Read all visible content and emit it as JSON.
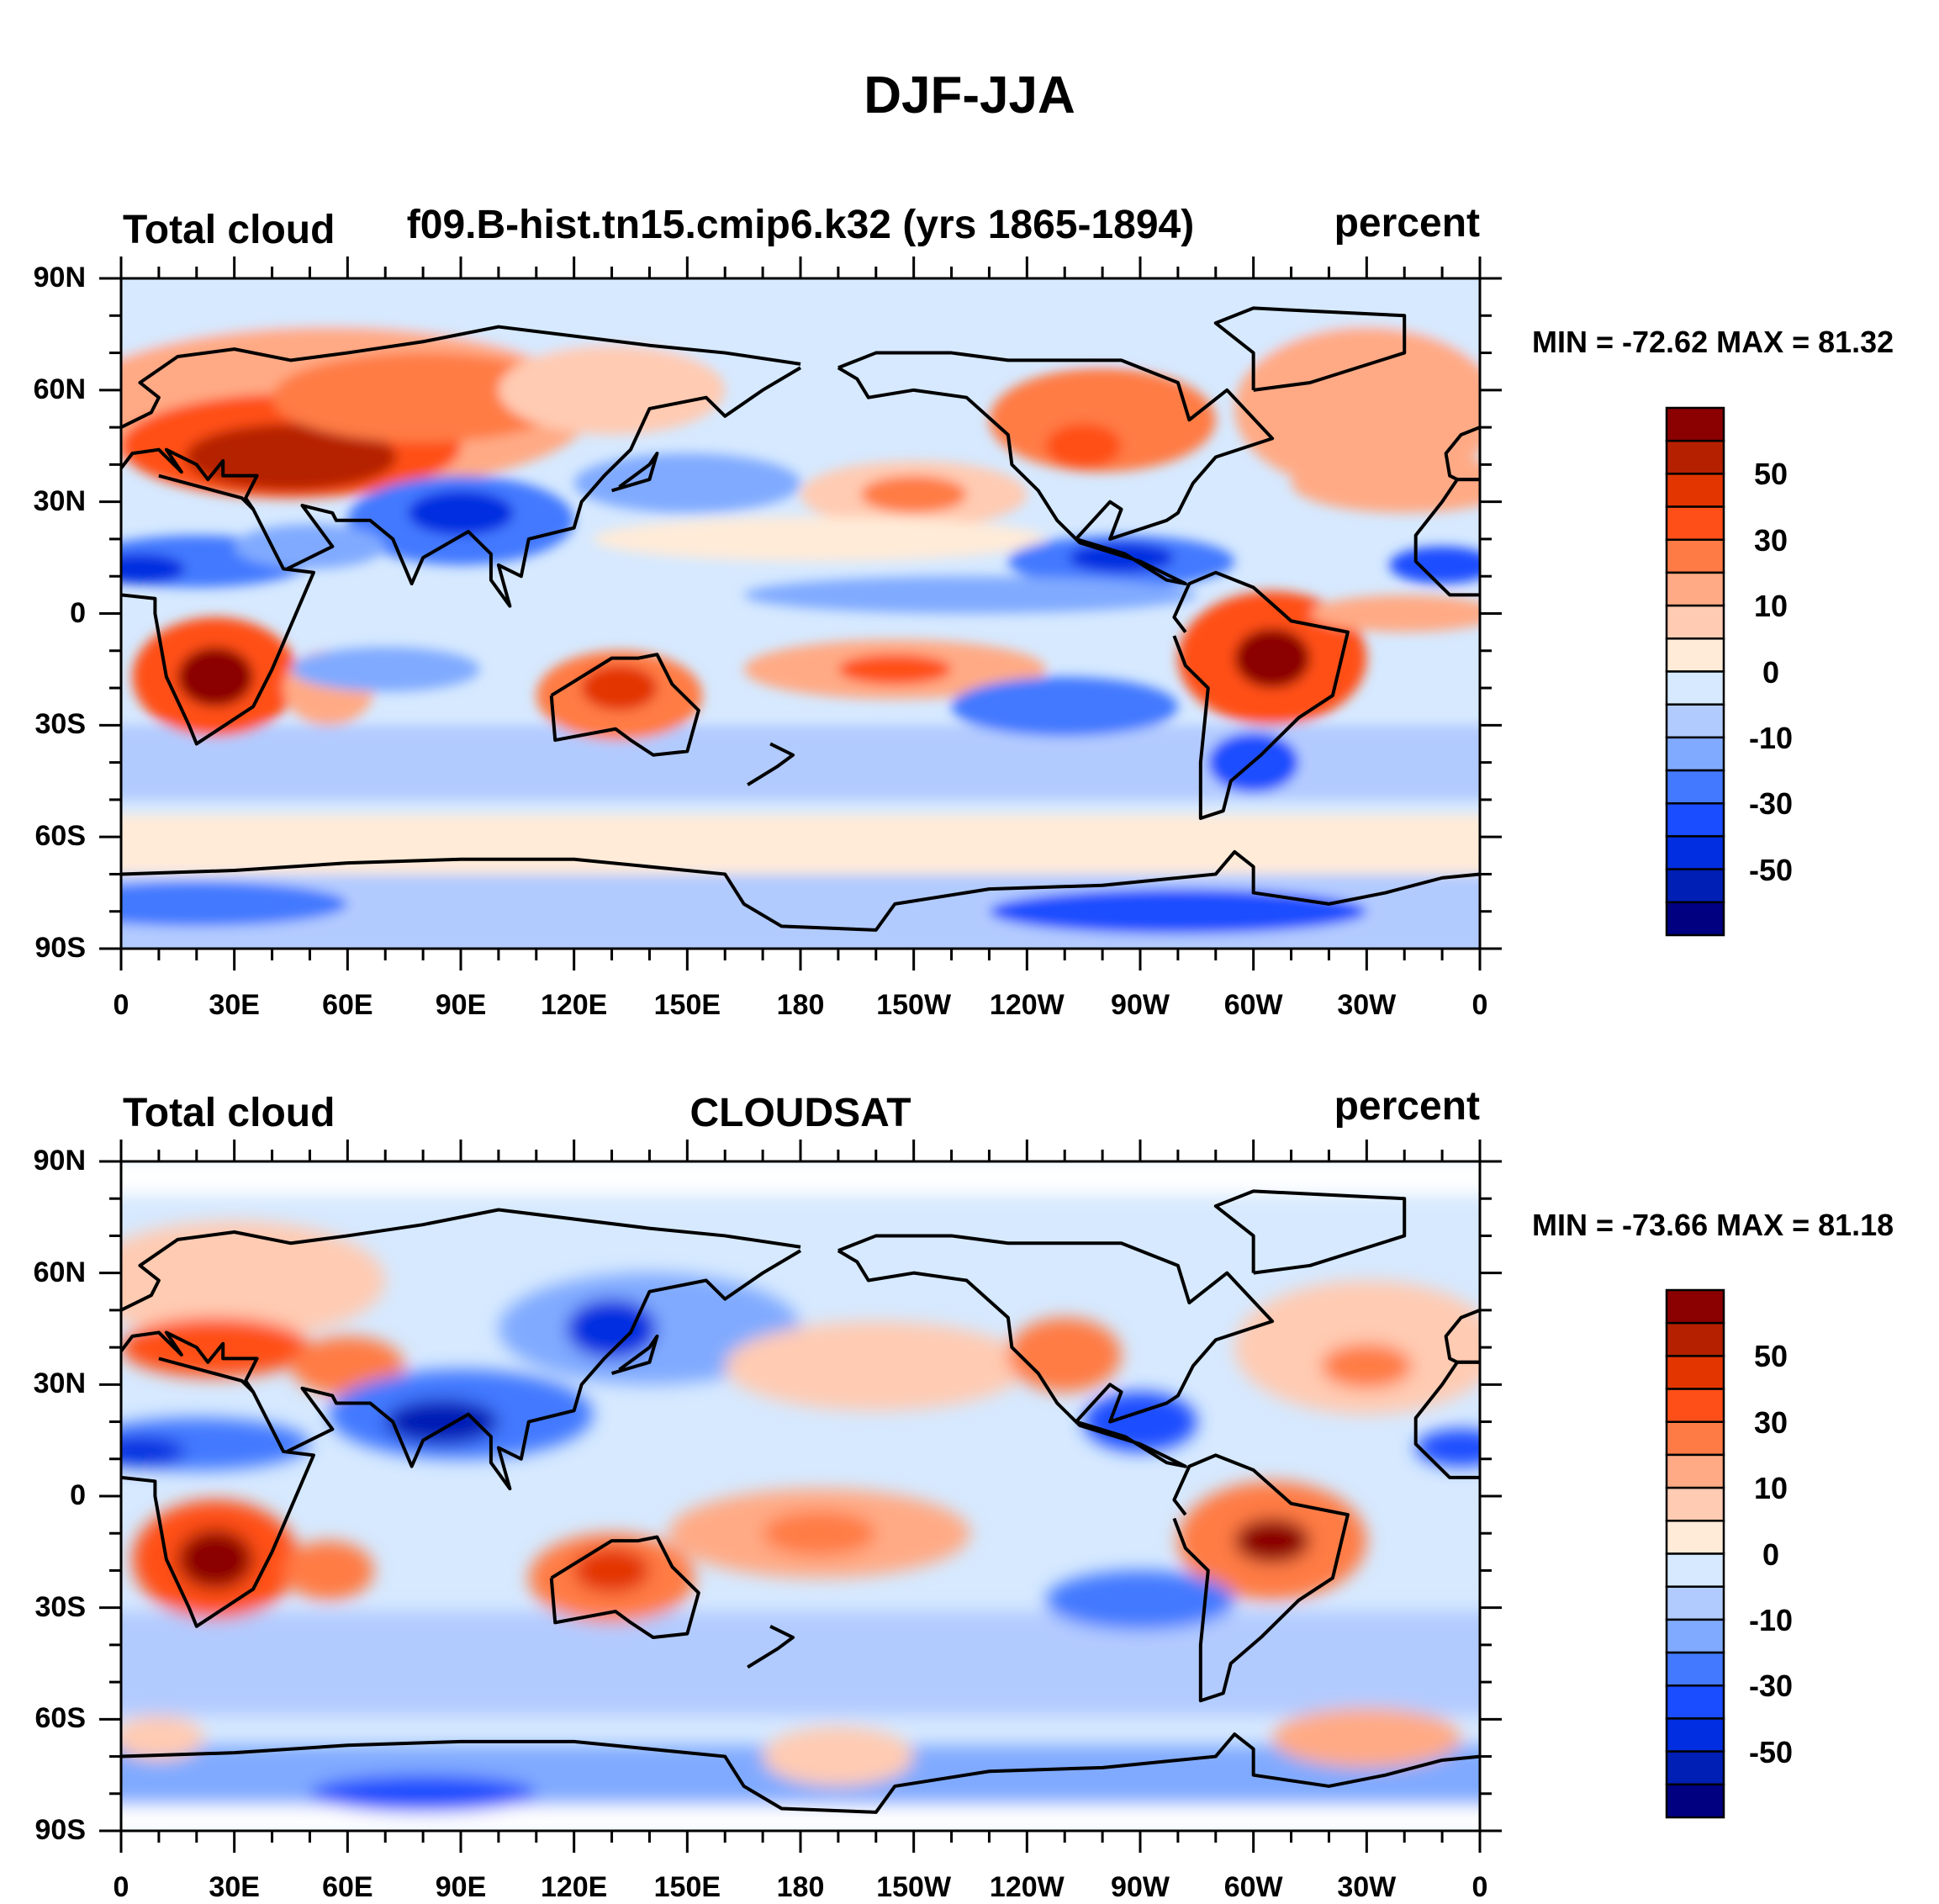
{
  "chart_data": {
    "type": "heatmap",
    "title": "DJF-JJA",
    "x_tick_labels": [
      "0",
      "30E",
      "60E",
      "90E",
      "120E",
      "150E",
      "180",
      "150W",
      "120W",
      "90W",
      "60W",
      "30W",
      "0"
    ],
    "y_tick_labels": [
      "90N",
      "60N",
      "30N",
      "0",
      "30S",
      "60S",
      "90S"
    ],
    "xlim": [
      0,
      360
    ],
    "ylim": [
      -90,
      90
    ],
    "colorbar": {
      "levels": [
        60,
        50,
        40,
        30,
        20,
        10,
        5,
        0,
        -5,
        -10,
        -20,
        -30,
        -40,
        -50,
        -60
      ],
      "labels": [
        "50",
        "30",
        "10",
        "0",
        "-10",
        "-30",
        "-50"
      ],
      "label_levels": [
        50,
        30,
        10,
        0,
        -10,
        -30,
        -50
      ],
      "colors": [
        "#8b0000",
        "#b52000",
        "#e33500",
        "#ff4f19",
        "#ff7b45",
        "#ffaa85",
        "#ffcbb2",
        "#ffebd8",
        "#d6e9ff",
        "#b2cbff",
        "#80aaff",
        "#4279ff",
        "#1a4dff",
        "#002ee0",
        "#001fb5",
        "#000080"
      ]
    },
    "panels": [
      {
        "left": "Total cloud",
        "center": "f09.B-hist.tn15.cmip6.k32 (yrs 1865-1894)",
        "right": "percent",
        "minmax": "MIN = -72.62 MAX =  81.32",
        "min": -72.62,
        "max": 81.32
      },
      {
        "left": "Total cloud",
        "center": "CLOUDSAT",
        "right": "percent",
        "minmax": "MIN = -73.66 MAX =  81.18",
        "min": -73.66,
        "max": 81.18
      }
    ]
  }
}
